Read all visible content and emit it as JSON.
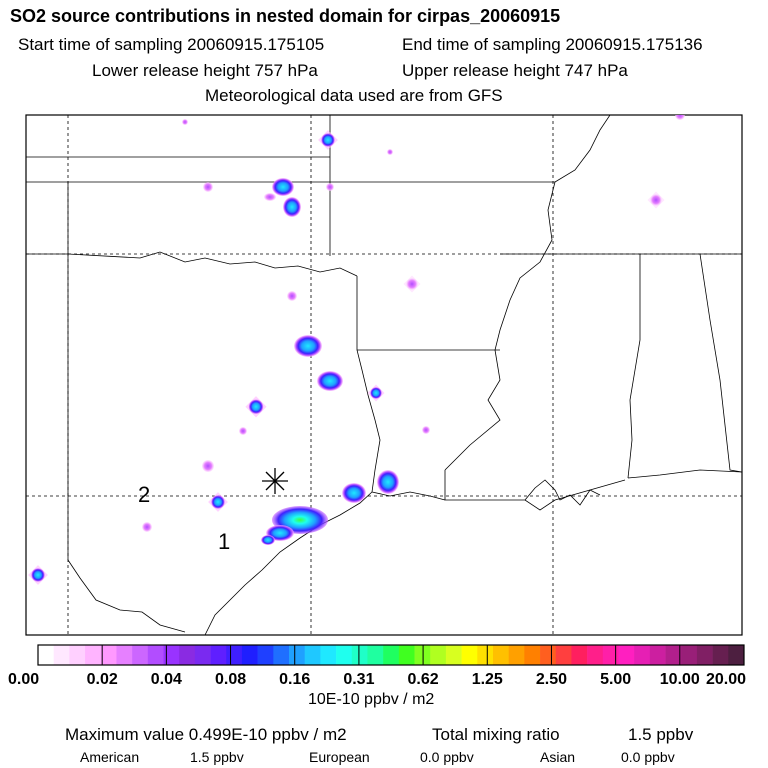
{
  "header": {
    "title": "SO2 source contributions in nested domain for cirpas_20060915",
    "start_time": "Start time of sampling 20060915.175105",
    "end_time": "End time of sampling 20060915.175136",
    "lower_height": "Lower release height  757 hPa",
    "upper_height": "Upper release height  747 hPa",
    "met_data": "Meteorological data used are from GFS"
  },
  "map": {
    "marker_labels": [
      "1",
      "2"
    ],
    "marker_symbol": "asterisk"
  },
  "colorbar": {
    "tick_labels": [
      "0.00",
      "0.02",
      "0.04",
      "0.08",
      "0.16",
      "0.31",
      "0.62",
      "1.25",
      "2.50",
      "5.00",
      "10.00",
      "20.00"
    ],
    "units": "10E-10 ppbv / m2",
    "colors": [
      "#ffffff",
      "#ffe8ff",
      "#ffd0ff",
      "#ffb4ff",
      "#ff99ff",
      "#e680ff",
      "#cc66ff",
      "#b24dff",
      "#9933ff",
      "#8a2be2",
      "#7a2af0",
      "#5f1fff",
      "#3f1fff",
      "#1f1fff",
      "#1f40ff",
      "#1f6fff",
      "#1fa0ff",
      "#1fc8ff",
      "#1fe8ff",
      "#1fffee",
      "#1fffc8",
      "#1fffa0",
      "#1fff60",
      "#40ff20",
      "#80ff20",
      "#b0ff20",
      "#d8ff20",
      "#ffff00",
      "#ffe000",
      "#ffc000",
      "#ffa000",
      "#ff8000",
      "#ff5f1f",
      "#ff3f3f",
      "#ff1f5f",
      "#ff1f8a",
      "#ff1fa8",
      "#ff1fc0",
      "#e61fb4",
      "#cc1fa0",
      "#b21f8c",
      "#991f78",
      "#801f64",
      "#661f50",
      "#4d1f40"
    ]
  },
  "footer": {
    "max_value": "Maximum value  0.499E-10 ppbv / m2",
    "total_mixing": "Total mixing ratio",
    "total_value": "1.5 ppbv",
    "american_label": "American",
    "american_value": "1.5 ppbv",
    "european_label": "European",
    "european_value": "0.0 ppbv",
    "asian_label": "Asian",
    "asian_value": "0.0 ppbv"
  }
}
